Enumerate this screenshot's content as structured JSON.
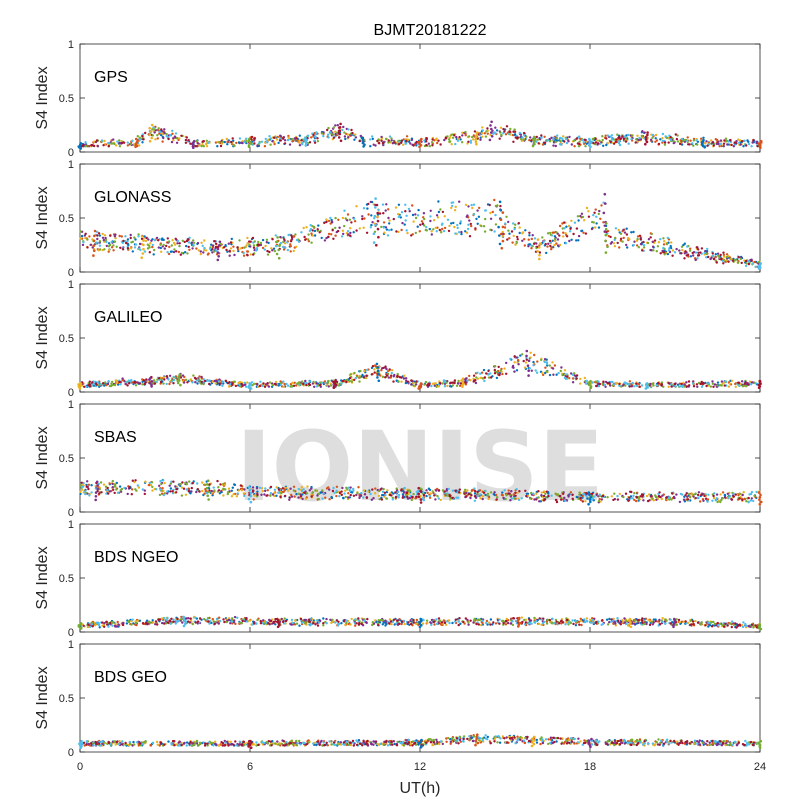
{
  "chart_data": {
    "type": "scatter",
    "title": "BJMT20181222",
    "xlabel": "UT(h)",
    "ylabel": "S4 Index",
    "xlim": [
      0,
      24
    ],
    "ylim": [
      0,
      1
    ],
    "xticks": [
      "0",
      "6",
      "12",
      "18",
      "24"
    ],
    "xtick_values": [
      0,
      6,
      12,
      18,
      24
    ],
    "yticks": [
      "0",
      "0.5",
      "1"
    ],
    "ytick_values": [
      0,
      0.5,
      1
    ],
    "watermark": "IONISE",
    "grid": false,
    "series_colors": [
      "#0072BD",
      "#D95319",
      "#EDB120",
      "#7E2F8E",
      "#77AC30",
      "#4DBEEE",
      "#A2142F"
    ],
    "panels": [
      {
        "label": "GPS",
        "base": 0.09,
        "spread": 0.05,
        "approx_points": [
          [
            0,
            0.08
          ],
          [
            2,
            0.12
          ],
          [
            2.5,
            0.25
          ],
          [
            4,
            0.1
          ],
          [
            6,
            0.12
          ],
          [
            8,
            0.15
          ],
          [
            9.2,
            0.26
          ],
          [
            10,
            0.13
          ],
          [
            12,
            0.12
          ],
          [
            14,
            0.18
          ],
          [
            14.5,
            0.28
          ],
          [
            16,
            0.14
          ],
          [
            18,
            0.12
          ],
          [
            20,
            0.18
          ],
          [
            22,
            0.11
          ],
          [
            24,
            0.1
          ]
        ]
      },
      {
        "label": "GLONASS",
        "base": 0.08,
        "spread": 0.05,
        "approx_points": [
          [
            0.5,
            0.38
          ],
          [
            2.2,
            0.33
          ],
          [
            4.9,
            0.28
          ],
          [
            7,
            0.32
          ],
          [
            10.4,
            0.68
          ],
          [
            10.5,
            0.62
          ],
          [
            14.8,
            0.65
          ],
          [
            14.9,
            0.55
          ],
          [
            16.2,
            0.3
          ],
          [
            18.5,
            0.72
          ],
          [
            18.6,
            0.45
          ],
          [
            24,
            0.08
          ]
        ]
      },
      {
        "label": "GALILEO",
        "base": 0.08,
        "spread": 0.03,
        "approx_points": [
          [
            0,
            0.08
          ],
          [
            2.5,
            0.13
          ],
          [
            3.5,
            0.16
          ],
          [
            6,
            0.08
          ],
          [
            9,
            0.1
          ],
          [
            10.5,
            0.26
          ],
          [
            12,
            0.08
          ],
          [
            13.5,
            0.12
          ],
          [
            15.8,
            0.38
          ],
          [
            18,
            0.1
          ],
          [
            20,
            0.08
          ],
          [
            24,
            0.1
          ]
        ]
      },
      {
        "label": "SBAS",
        "base": 0.15,
        "spread": 0.03,
        "approx_points": [
          [
            0.6,
            0.28
          ],
          [
            4.5,
            0.29
          ],
          [
            6,
            0.23
          ],
          [
            12,
            0.22
          ],
          [
            18,
            0.18
          ],
          [
            24,
            0.18
          ]
        ]
      },
      {
        "label": "BDS NGEO",
        "base": 0.07,
        "spread": 0.02,
        "approx_points": [
          [
            0,
            0.08
          ],
          [
            3.7,
            0.14
          ],
          [
            7,
            0.12
          ],
          [
            12,
            0.12
          ],
          [
            15.5,
            0.13
          ],
          [
            19.4,
            0.12
          ],
          [
            21,
            0.12
          ],
          [
            24,
            0.07
          ]
        ]
      },
      {
        "label": "BDS GEO",
        "base": 0.1,
        "spread": 0.01,
        "approx_points": [
          [
            0,
            0.1
          ],
          [
            6,
            0.1
          ],
          [
            12,
            0.11
          ],
          [
            14,
            0.16
          ],
          [
            16,
            0.14
          ],
          [
            18,
            0.12
          ],
          [
            24,
            0.1
          ]
        ]
      }
    ]
  }
}
